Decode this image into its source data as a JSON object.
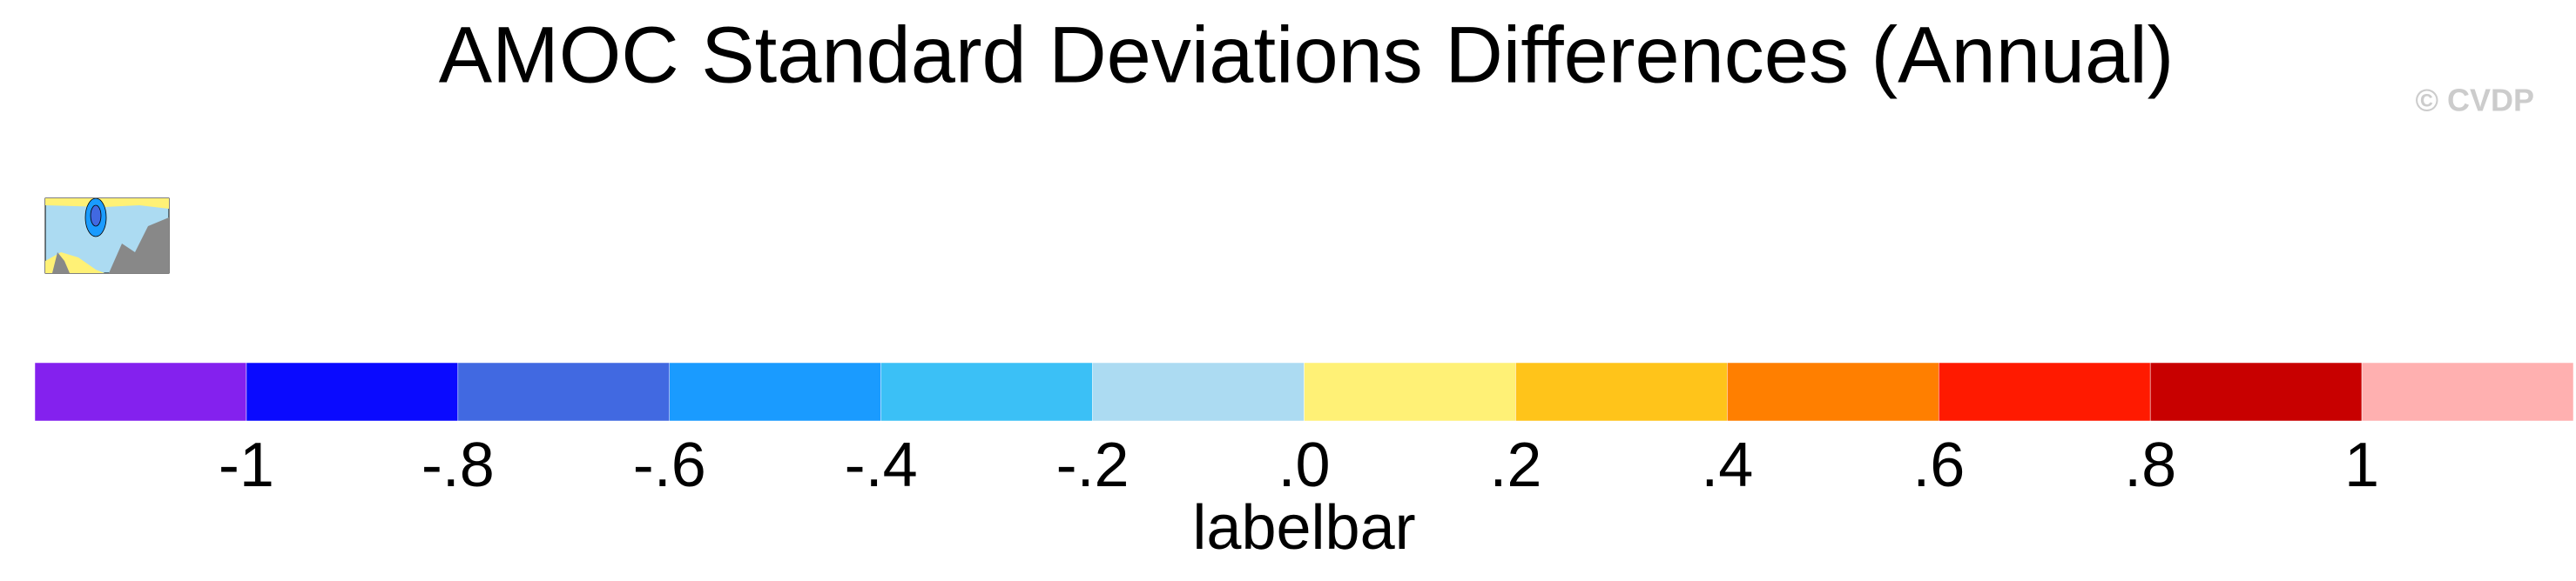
{
  "chart_data": {
    "type": "colorbar",
    "title": "AMOC Standard Deviations Differences (Annual)",
    "watermark": "© CVDP",
    "xlabel": "labelbar",
    "colors": [
      "#8421ee",
      "#0a0aff",
      "#4169e1",
      "#1a9bff",
      "#3bc0f6",
      "#acdbf2",
      "#fff176",
      "#ffc41a",
      "#ff7f00",
      "#ff1a00",
      "#c80000",
      "#ffb0b0"
    ],
    "xlim": [
      -1.2,
      1.2
    ],
    "xticks": [
      -1,
      {
        "value": -0.8,
        "label": "-.8"
      },
      {
        "value": -0.6,
        "label": "-.6"
      },
      {
        "value": -0.4,
        "label": "-.4"
      },
      {
        "value": -0.2,
        "label": "-.2"
      },
      {
        "value": 0,
        "label": ".0"
      },
      {
        "value": 0.2,
        "label": ".2"
      },
      {
        "value": 0.4,
        "label": ".4"
      },
      {
        "value": 0.6,
        "label": ".6"
      },
      {
        "value": 0.8,
        "label": ".8"
      },
      1
    ]
  }
}
